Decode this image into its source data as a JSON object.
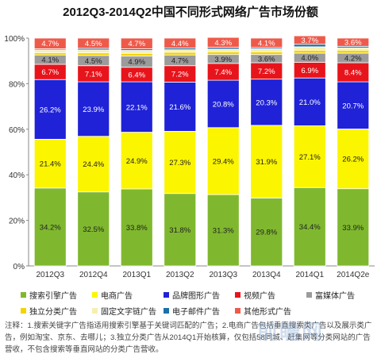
{
  "chart_data": {
    "type": "bar",
    "stacked": true,
    "percent": true,
    "title": "2012Q3-2014Q2中国不同形式网络广告市场份额",
    "categories": [
      "2012Q3",
      "2012Q4",
      "2013Q1",
      "2013Q2",
      "2013Q3",
      "2013Q4",
      "2014Q1",
      "2014Q2e"
    ],
    "ylim": [
      0,
      100
    ],
    "yticks": [
      "0%",
      "20%",
      "40%",
      "60%",
      "80%",
      "100%"
    ],
    "grid": false,
    "legend_position": "bottom",
    "series": [
      {
        "name": "搜索引擎广告",
        "color": "#7fb82e",
        "values": [
          34.2,
          32.5,
          33.8,
          31.8,
          31.3,
          29.8,
          34.4,
          33.9
        ],
        "labels": [
          "34.2%",
          "32.5%",
          "33.8%",
          "31.8%",
          "31.3%",
          "29.8%",
          "34.4%",
          "33.9%"
        ]
      },
      {
        "name": "独立分类广告",
        "color": "#f5d400",
        "values": [
          0,
          0,
          0,
          0,
          0,
          0,
          0,
          0
        ],
        "labels": []
      },
      {
        "name": "电商广告",
        "color": "#fbf500",
        "values": [
          21.4,
          24.4,
          24.9,
          27.3,
          29.4,
          31.9,
          27.1,
          26.2
        ],
        "labels": [
          "21.4%",
          "24.4%",
          "24.9%",
          "27.3%",
          "29.4%",
          "31.9%",
          "27.1%",
          "26.2%"
        ]
      },
      {
        "name": "固定文字链广告",
        "color": "#f7efb0",
        "values": [
          0,
          0,
          0,
          0,
          0,
          0,
          0,
          0
        ],
        "labels": []
      },
      {
        "name": "品牌图形广告",
        "color": "#1f22d6",
        "values": [
          26.2,
          23.9,
          22.1,
          21.6,
          20.8,
          20.3,
          21.0,
          20.7
        ],
        "labels": [
          "26.2%",
          "23.9%",
          "22.1%",
          "21.6%",
          "20.8%",
          "20.3%",
          "21.0%",
          "20.7%"
        ]
      },
      {
        "name": "电子邮件广告",
        "color": "#1c6fa8",
        "values": [
          0,
          0,
          0,
          0,
          0,
          0,
          0,
          0
        ],
        "labels": []
      },
      {
        "name": "视频广告",
        "color": "#e8141b",
        "values": [
          6.7,
          7.1,
          6.4,
          7.2,
          7.4,
          7.2,
          6.9,
          8.4
        ],
        "labels": [
          "6.7%",
          "7.1%",
          "6.4%",
          "7.2%",
          "7.4%",
          "7.2%",
          "6.9%",
          "8.4%"
        ]
      },
      {
        "name": "其他形式广告",
        "color": "#ee5a4a",
        "values": [
          0,
          0,
          0,
          0,
          0,
          0,
          0,
          0
        ],
        "labels": []
      },
      {
        "name": "富媒体广告",
        "color": "#9b9b9b",
        "values": [
          4.1,
          4.5,
          4.9,
          4.7,
          3.9,
          3.6,
          4.0,
          4.2
        ],
        "labels": [
          "4.1%",
          "4.5%",
          "4.9%",
          "4.7%",
          "3.9%",
          "3.6%",
          "4.0%",
          "4.2%"
        ]
      },
      {
        "name": "独立分类广告",
        "color": "#f5d400",
        "values": [
          1.0,
          1.1,
          1.2,
          1.2,
          1.2,
          1.2,
          1.3,
          1.3
        ],
        "labels": []
      },
      {
        "name": "固定文字链广告",
        "color": "#f7efb0",
        "values": [
          1.2,
          1.3,
          1.3,
          1.1,
          1.2,
          1.3,
          1.5,
          1.0
        ],
        "labels": []
      },
      {
        "name": "电子邮件广告",
        "color": "#1c6fa8",
        "values": [
          0.5,
          0.7,
          0.7,
          0.7,
          0.8,
          0.6,
          1.1,
          0.7
        ],
        "labels": []
      },
      {
        "name": "其他形式广告",
        "color": "#ee5a4a",
        "values": [
          4.7,
          4.5,
          4.7,
          4.4,
          4.3,
          4.1,
          3.7,
          3.6
        ],
        "labels": [
          "4.7%",
          "4.5%",
          "4.7%",
          "4.4%",
          "4.3%",
          "4.1%",
          "3.7%",
          "3.6%"
        ]
      }
    ]
  },
  "legend": [
    {
      "name": "搜索引擎广告",
      "color": "#7fb82e"
    },
    {
      "name": "电商广告",
      "color": "#fbf500"
    },
    {
      "name": "品牌图形广告",
      "color": "#1f22d6"
    },
    {
      "name": "视频广告",
      "color": "#e8141b"
    },
    {
      "name": "富媒体广告",
      "color": "#9b9b9b"
    },
    {
      "name": "独立分类广告",
      "color": "#f5d400"
    },
    {
      "name": "固定文字链广告",
      "color": "#f7efb0"
    },
    {
      "name": "电子邮件广告",
      "color": "#1c6fa8"
    },
    {
      "name": "其他形式广告",
      "color": "#ee5a4a"
    }
  ],
  "note": "注释：1.搜索关键字广告指适用搜索引擎基于关键词匹配的广告；2.电商广告包括垂直搜索类广告以及展示类广告，例如淘宝、京东、去哪儿；3.独立分类广告从2014Q1开始核算，仅包括58同城、赶集网等分类网站的广告营收，不包含搜索等垂直网站的分类广告营收。",
  "watermark": "前瞻网"
}
